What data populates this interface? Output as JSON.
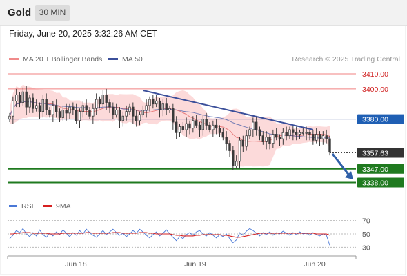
{
  "header": {
    "symbol": "Gold",
    "timeframe": "30 MIN",
    "datetime": "Friday, June 20, 2025 3:32:26 AM CET"
  },
  "legend": {
    "bollinger": "MA 20 + Bollinger Bands",
    "ma50": "MA 50",
    "attribution": "Research © 2025 Trading Central"
  },
  "rsi_legend": {
    "rsi": "RSI",
    "ma": "9MA"
  },
  "colors": {
    "bullish_candle": "#3a3a3a",
    "bearish_candle": "#3a3a3a",
    "bollinger_fill": "#fbd4d4",
    "ma20": "#e77a7a",
    "ma50": "#4a5fa8",
    "trendline": "#3b4f9a",
    "resistance_line": "#f08080",
    "support_line": "#1f7a1f",
    "pivot_label": "#1f5fb4",
    "current_label": "#333333",
    "arrow": "#2f5fa8",
    "rsi_line": "#4a78d6",
    "rsi_ma_line": "#d62020"
  },
  "chart_data": [
    {
      "type": "candlestick",
      "title": "",
      "y_range": [
        3330,
        3415
      ],
      "x_labels": [
        "Jun 18",
        "Jun 19",
        "Jun 20"
      ],
      "levels": [
        {
          "value": 3410.0,
          "label": "3410.00",
          "kind": "resistance"
        },
        {
          "value": 3400.0,
          "label": "3400.00",
          "kind": "resistance"
        },
        {
          "value": 3380.0,
          "label": "3380.00",
          "kind": "pivot"
        },
        {
          "value": 3357.63,
          "label": "3357.63",
          "kind": "last"
        },
        {
          "value": 3347.0,
          "label": "3347.00",
          "kind": "support"
        },
        {
          "value": 3338.0,
          "label": "3338.00",
          "kind": "support"
        }
      ],
      "close": [
        3382,
        3392,
        3396,
        3391,
        3398,
        3388,
        3394,
        3387,
        3389,
        3385,
        3393,
        3386,
        3383,
        3389,
        3385,
        3381,
        3386,
        3384,
        3388,
        3386,
        3379,
        3385,
        3389,
        3386,
        3382,
        3387,
        3393,
        3390,
        3396,
        3391,
        3388,
        3383,
        3386,
        3379,
        3382,
        3385,
        3388,
        3382,
        3379,
        3383,
        3386,
        3389,
        3393,
        3390,
        3392,
        3386,
        3390,
        3386,
        3387,
        3378,
        3371,
        3375,
        3373,
        3377,
        3374,
        3379,
        3376,
        3373,
        3380,
        3376,
        3373,
        3376,
        3374,
        3371,
        3368,
        3364,
        3359,
        3349,
        3352,
        3366,
        3362,
        3369,
        3373,
        3378,
        3373,
        3369,
        3365,
        3368,
        3364,
        3370,
        3368,
        3367,
        3371,
        3369,
        3373,
        3371,
        3370,
        3371,
        3371,
        3371,
        3370,
        3366,
        3370,
        3367,
        3369,
        3367,
        3358
      ],
      "trendline": {
        "start_value": 3399,
        "end_value": 3373
      },
      "forecast_arrow": {
        "from_value": 3357,
        "to_value": 3340
      }
    },
    {
      "type": "line",
      "title": "",
      "y_ticks": [
        70,
        50,
        30
      ],
      "y_range": [
        20,
        80
      ],
      "series": [
        {
          "name": "RSI",
          "values": [
            43,
            48,
            55,
            52,
            58,
            50,
            46,
            52,
            47,
            56,
            49,
            45,
            51,
            47,
            53,
            49,
            56,
            51,
            46,
            52,
            48,
            55,
            50,
            57,
            52,
            48,
            45,
            50,
            55,
            49,
            53,
            57,
            52,
            48,
            51,
            46,
            50,
            55,
            51,
            57,
            53,
            48,
            44,
            49,
            53,
            47,
            51,
            56,
            50,
            45,
            40,
            46,
            43,
            49,
            52,
            48,
            53,
            55,
            50,
            47,
            52,
            48,
            44,
            49,
            46,
            50,
            43,
            37,
            41,
            52,
            48,
            54,
            58,
            55,
            51,
            47,
            52,
            49,
            53,
            48,
            52,
            50,
            54,
            51,
            48,
            52,
            49,
            53,
            50,
            51,
            48,
            52,
            49,
            47,
            50,
            48,
            33
          ]
        },
        {
          "name": "9MA",
          "values": [
            50,
            50,
            51,
            51,
            52,
            52,
            52,
            51,
            51,
            51,
            51,
            51,
            50,
            50,
            50,
            50,
            51,
            51,
            51,
            51,
            51,
            51,
            51,
            52,
            52,
            51,
            51,
            51,
            51,
            51,
            51,
            52,
            52,
            52,
            51,
            51,
            51,
            51,
            51,
            52,
            52,
            52,
            51,
            51,
            50,
            50,
            50,
            50,
            50,
            49,
            48,
            48,
            47,
            47,
            47,
            47,
            48,
            48,
            49,
            49,
            49,
            49,
            49,
            49,
            48,
            48,
            47,
            46,
            45,
            45,
            46,
            47,
            48,
            49,
            50,
            51,
            51,
            51,
            51,
            51,
            51,
            51,
            51,
            51,
            51,
            51,
            51,
            51,
            51,
            51,
            51,
            51,
            50,
            50,
            50,
            50,
            48
          ]
        }
      ]
    }
  ]
}
